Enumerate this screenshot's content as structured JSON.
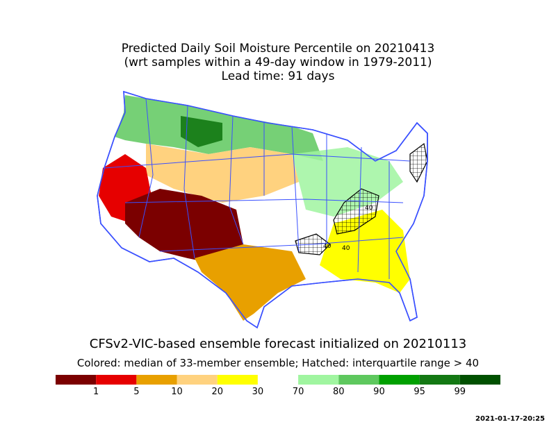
{
  "title": {
    "line1": "Predicted Daily Soil Moisture Percentile on 20210413",
    "line2": "(wrt samples within a 49-day window in 1979-2011)",
    "line3": "Lead time: 91 days"
  },
  "forecast": {
    "title": "CFSv2-VIC-based ensemble forecast initialized on 20210113",
    "subtitle": "Colored: median of 33-member ensemble; Hatched: interquartile range > 40"
  },
  "legend": {
    "bins": [
      {
        "color": "#7b0000"
      },
      {
        "color": "#e60000"
      },
      {
        "color": "#e8a000"
      },
      {
        "color": "#ffd27f"
      },
      {
        "color": "#ffff00"
      },
      {
        "color": "#ffffff"
      },
      {
        "color": "#a0f5a0"
      },
      {
        "color": "#5ec85e"
      },
      {
        "color": "#00a000"
      },
      {
        "color": "#137813"
      },
      {
        "color": "#005000"
      }
    ],
    "ticks": [
      "1",
      "5",
      "10",
      "20",
      "30",
      "70",
      "80",
      "90",
      "95",
      "99"
    ]
  },
  "map": {
    "border_color": "#3a50ff",
    "contour_label": "40",
    "regions": [
      {
        "name": "southwest",
        "color": "#7b0000"
      },
      {
        "name": "california",
        "color": "#e60000"
      },
      {
        "name": "texas",
        "color": "#e8a000"
      },
      {
        "name": "southeast",
        "color": "#ffff00"
      },
      {
        "name": "north",
        "color": "#5ec85e"
      },
      {
        "name": "plains",
        "color": "#ffd27f"
      }
    ]
  },
  "timestamp": "2021-01-17-20:25"
}
